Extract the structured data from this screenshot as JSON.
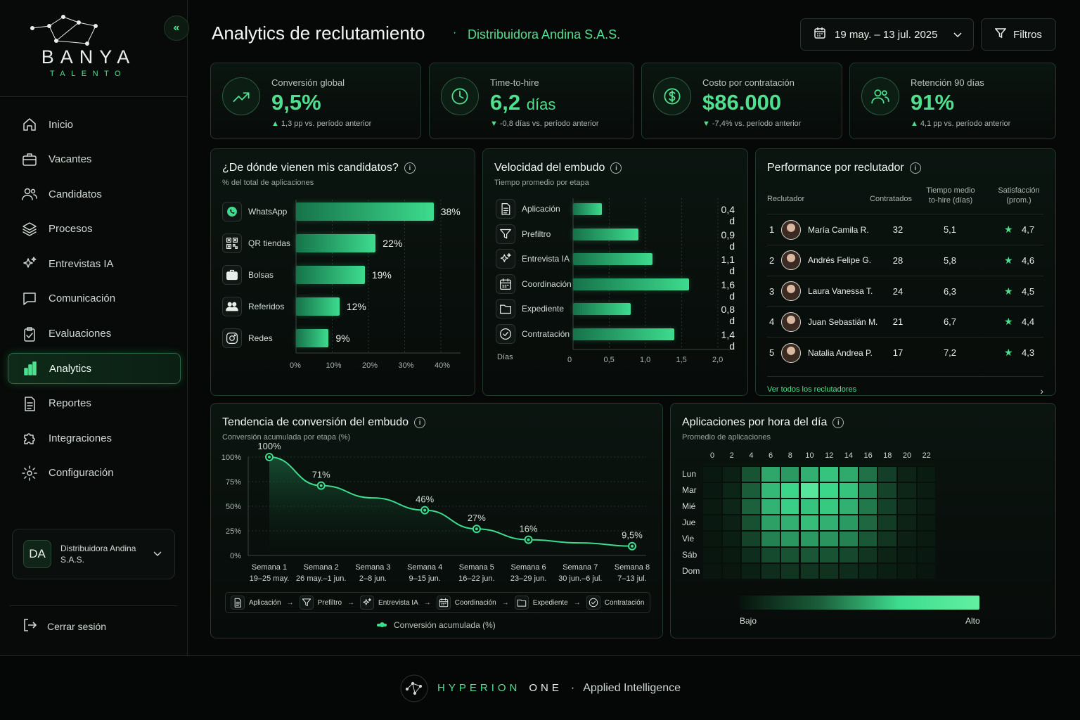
{
  "brand": {
    "name": "BANYA",
    "sub": "TALENTO"
  },
  "nav": [
    {
      "label": "Inicio",
      "icon": "home-icon"
    },
    {
      "label": "Vacantes",
      "icon": "briefcase-icon"
    },
    {
      "label": "Candidatos",
      "icon": "users-icon"
    },
    {
      "label": "Procesos",
      "icon": "layers-icon"
    },
    {
      "label": "Entrevistas IA",
      "icon": "sparkles-icon"
    },
    {
      "label": "Comunicación",
      "icon": "chat-icon"
    },
    {
      "label": "Evaluaciones",
      "icon": "clipboard-icon"
    },
    {
      "label": "Analytics",
      "icon": "bar-chart-icon",
      "active": true
    },
    {
      "label": "Reportes",
      "icon": "document-icon"
    },
    {
      "label": "Integraciones",
      "icon": "puzzle-icon"
    },
    {
      "label": "Configuración",
      "icon": "gear-icon"
    }
  ],
  "org": {
    "initials": "DA",
    "name": "Distribuidora Andina S.A.S."
  },
  "logout": "Cerrar sesión",
  "header": {
    "title": "Analytics de reclutamiento",
    "org": "Distribuidora Andina S.A.S.",
    "date_range": "19 may. – 13 jul. 2025",
    "filters": "Filtros"
  },
  "kpis": [
    {
      "label": "Conversión global",
      "value": "9,5%",
      "unit": "",
      "delta": "1,3 pp vs. período anterior",
      "dir": "up",
      "icon": "trending-up-icon"
    },
    {
      "label": "Time-to-hire",
      "value": "6,2",
      "unit": "días",
      "delta": "-0,8 días vs. período anterior",
      "dir": "down",
      "icon": "clock-icon"
    },
    {
      "label": "Costo por contratación",
      "value": "$86.000",
      "unit": "",
      "delta": "-7,4% vs. período anterior",
      "dir": "down",
      "icon": "dollar-icon"
    },
    {
      "label": "Retención 90 días",
      "value": "91%",
      "unit": "",
      "delta": "4,1 pp vs. período anterior",
      "dir": "up",
      "icon": "users-icon"
    }
  ],
  "sources": {
    "title": "¿De dónde vienen mis candidatos?",
    "subtitle": "% del total de aplicaciones",
    "ticks": [
      "0%",
      "10%",
      "20%",
      "30%",
      "40%"
    ]
  },
  "velocity": {
    "title": "Velocidad del embudo",
    "subtitle": "Tiempo promedio por etapa",
    "axis_label": "Días",
    "ticks": [
      "0",
      "0,5",
      "1,0",
      "1,5",
      "2,0"
    ]
  },
  "recruiters": {
    "title": "Performance por reclutador",
    "headers": [
      "Reclutador",
      "Contratados",
      "Tiempo medio to-hire (días)",
      "Satisfacción (prom.)"
    ],
    "rows": [
      {
        "rank": "1",
        "name": "María Camila R.",
        "hired": "32",
        "tth": "5,1",
        "sat": "4,7"
      },
      {
        "rank": "2",
        "name": "Andrés Felipe G.",
        "hired": "28",
        "tth": "5,8",
        "sat": "4,6"
      },
      {
        "rank": "3",
        "name": "Laura Vanessa T.",
        "hired": "24",
        "tth": "6,3",
        "sat": "4,5"
      },
      {
        "rank": "4",
        "name": "Juan Sebastián M.",
        "hired": "21",
        "tth": "6,7",
        "sat": "4,4"
      },
      {
        "rank": "5",
        "name": "Natalia Andrea P.",
        "hired": "17",
        "tth": "7,2",
        "sat": "4,3"
      }
    ],
    "more": "Ver todos los reclutadores"
  },
  "trend": {
    "title": "Tendencia de conversión del embudo",
    "subtitle": "Conversión acumulada por etapa (%)",
    "weeks": [
      {
        "w": "Semana 1",
        "d": "19–25 may."
      },
      {
        "w": "Semana 2",
        "d": "26 may.–1 jun."
      },
      {
        "w": "Semana 3",
        "d": "2–8 jun."
      },
      {
        "w": "Semana 4",
        "d": "9–15 jun."
      },
      {
        "w": "Semana 5",
        "d": "16–22 jun."
      },
      {
        "w": "Semana 6",
        "d": "23–29 jun."
      },
      {
        "w": "Semana 7",
        "d": "30 jun.–6 jul."
      },
      {
        "w": "Semana 8",
        "d": "7–13 jul."
      }
    ],
    "stages": [
      "Aplicación",
      "Prefiltro",
      "Entrevista IA",
      "Coordinación",
      "Expediente",
      "Contratación"
    ],
    "legend": "Conversión acumulada (%)"
  },
  "heatmap": {
    "title": "Aplicaciones por hora del día",
    "subtitle": "Promedio de aplicaciones",
    "hours": [
      "0",
      "2",
      "4",
      "6",
      "8",
      "10",
      "12",
      "14",
      "16",
      "18",
      "20",
      "22"
    ],
    "days": [
      "Lun",
      "Mar",
      "Mié",
      "Jue",
      "Vie",
      "Sáb",
      "Dom"
    ],
    "low": "Bajo",
    "high": "Alto"
  },
  "footer": {
    "brand": "HYPERION",
    "brand2": "ONE",
    "tag": "Applied Intelligence"
  },
  "chart_data": [
    {
      "type": "bar",
      "orientation": "horizontal",
      "title": "¿De dónde vienen mis candidatos?",
      "categories": [
        "WhatsApp",
        "QR tiendas",
        "Bolsas",
        "Referidos",
        "Redes"
      ],
      "values": [
        38,
        22,
        19,
        12,
        9
      ],
      "labels": [
        "38%",
        "22%",
        "19%",
        "12%",
        "9%"
      ],
      "xlim": [
        0,
        40
      ]
    },
    {
      "type": "bar",
      "orientation": "horizontal",
      "title": "Velocidad del embudo",
      "categories": [
        "Aplicación",
        "Prefiltro",
        "Entrevista IA",
        "Coordinación",
        "Expediente",
        "Contratación"
      ],
      "values": [
        0.4,
        0.9,
        1.1,
        1.6,
        0.8,
        1.4
      ],
      "labels": [
        "0,4 d",
        "0,9 d",
        "1,1 d",
        "1,6 d",
        "0,8 d",
        "1,4 d"
      ],
      "xlabel": "Días",
      "xlim": [
        0,
        2
      ]
    },
    {
      "type": "area",
      "title": "Tendencia de conversión del embudo",
      "x": [
        "Semana 1",
        "Semana 2",
        "Semana 3",
        "Semana 4",
        "Semana 5",
        "Semana 6",
        "Semana 7",
        "Semana 8"
      ],
      "series": [
        {
          "name": "Conversión acumulada (%)",
          "values": [
            100,
            71,
            null,
            46,
            27,
            16,
            null,
            9.5
          ],
          "labels": [
            "100%",
            "71%",
            "",
            "46%",
            "27%",
            "16%",
            "",
            "9,5%"
          ]
        }
      ],
      "yticks": [
        "0%",
        "25%",
        "50%",
        "75%",
        "100%"
      ],
      "ylim": [
        0,
        100
      ]
    },
    {
      "type": "heatmap",
      "title": "Aplicaciones por hora del día",
      "rows": [
        "Lun",
        "Mar",
        "Mié",
        "Jue",
        "Vie",
        "Sáb",
        "Dom"
      ],
      "cols": [
        0,
        1,
        2,
        3,
        4,
        5,
        6,
        7,
        8,
        9,
        10,
        11,
        12,
        13,
        14,
        15,
        16,
        17,
        18,
        19,
        20,
        21,
        22,
        23
      ],
      "values": [
        [
          0.04,
          0.03,
          0.05,
          0.12,
          0.28,
          0.5,
          0.66,
          0.7,
          0.62,
          0.66,
          0.72,
          0.7,
          0.78,
          0.76,
          0.7,
          0.68,
          0.58,
          0.44,
          0.32,
          0.2,
          0.12,
          0.08,
          0.06,
          0.05
        ],
        [
          0.04,
          0.03,
          0.06,
          0.16,
          0.32,
          0.56,
          0.72,
          0.76,
          0.8,
          0.86,
          0.92,
          0.86,
          0.82,
          0.84,
          0.8,
          0.74,
          0.64,
          0.5,
          0.36,
          0.22,
          0.14,
          0.1,
          0.07,
          0.05
        ],
        [
          0.05,
          0.04,
          0.06,
          0.18,
          0.36,
          0.56,
          0.7,
          0.74,
          0.82,
          0.8,
          0.76,
          0.78,
          0.8,
          0.78,
          0.74,
          0.68,
          0.6,
          0.46,
          0.34,
          0.22,
          0.14,
          0.1,
          0.07,
          0.05
        ],
        [
          0.04,
          0.03,
          0.05,
          0.12,
          0.28,
          0.46,
          0.62,
          0.7,
          0.72,
          0.7,
          0.74,
          0.76,
          0.72,
          0.7,
          0.66,
          0.62,
          0.54,
          0.42,
          0.3,
          0.2,
          0.12,
          0.08,
          0.06,
          0.04
        ],
        [
          0.03,
          0.03,
          0.04,
          0.1,
          0.22,
          0.36,
          0.52,
          0.6,
          0.62,
          0.64,
          0.62,
          0.66,
          0.64,
          0.6,
          0.58,
          0.54,
          0.46,
          0.36,
          0.26,
          0.16,
          0.1,
          0.07,
          0.05,
          0.04
        ],
        [
          0.03,
          0.02,
          0.03,
          0.06,
          0.12,
          0.2,
          0.3,
          0.36,
          0.38,
          0.4,
          0.4,
          0.42,
          0.4,
          0.38,
          0.34,
          0.3,
          0.24,
          0.18,
          0.12,
          0.08,
          0.06,
          0.05,
          0.04,
          0.03
        ],
        [
          0.02,
          0.02,
          0.02,
          0.04,
          0.06,
          0.1,
          0.14,
          0.18,
          0.2,
          0.22,
          0.22,
          0.2,
          0.2,
          0.18,
          0.16,
          0.14,
          0.12,
          0.1,
          0.08,
          0.06,
          0.05,
          0.04,
          0.03,
          0.02
        ]
      ]
    }
  ]
}
